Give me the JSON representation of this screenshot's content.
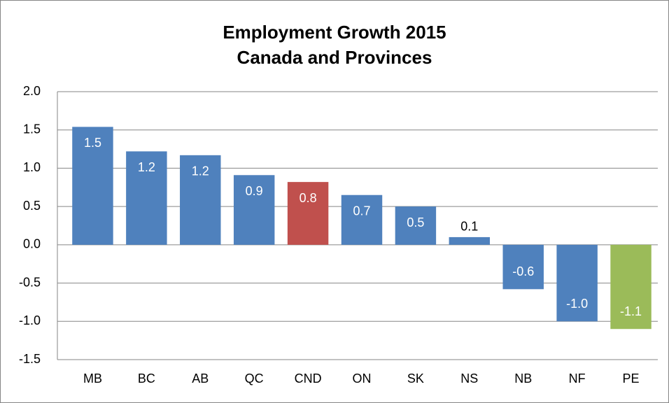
{
  "chart_data": {
    "type": "bar",
    "title": "Employment Growth 2015",
    "subtitle": "Canada and Provinces",
    "categories": [
      "MB",
      "BC",
      "AB",
      "QC",
      "CND",
      "ON",
      "SK",
      "NS",
      "NB",
      "NF",
      "PE"
    ],
    "values": [
      1.54,
      1.22,
      1.17,
      0.91,
      0.82,
      0.65,
      0.5,
      0.1,
      -0.58,
      -1.0,
      -1.1
    ],
    "value_labels": [
      "1.5",
      "1.2",
      "1.2",
      "0.9",
      "0.8",
      "0.7",
      "0.5",
      "0.1",
      "-0.6",
      "-1.0",
      "-1.1"
    ],
    "colors": [
      "#4f81bd",
      "#4f81bd",
      "#4f81bd",
      "#4f81bd",
      "#c0504d",
      "#4f81bd",
      "#4f81bd",
      "#4f81bd",
      "#4f81bd",
      "#4f81bd",
      "#9bbb59"
    ],
    "ylim": [
      -1.5,
      2.0
    ],
    "yticks": [
      {
        "value": -1.5,
        "label": "-1.5"
      },
      {
        "value": -1.0,
        "label": "-1.0"
      },
      {
        "value": -0.5,
        "label": "-0.5"
      },
      {
        "value": 0,
        "label": "0.0"
      },
      {
        "value": 0.5,
        "label": "0.5"
      },
      {
        "value": 1.0,
        "label": "1.0"
      },
      {
        "value": 1.5,
        "label": "1.5"
      },
      {
        "value": 2.0,
        "label": "2.0"
      }
    ],
    "grid": true
  }
}
